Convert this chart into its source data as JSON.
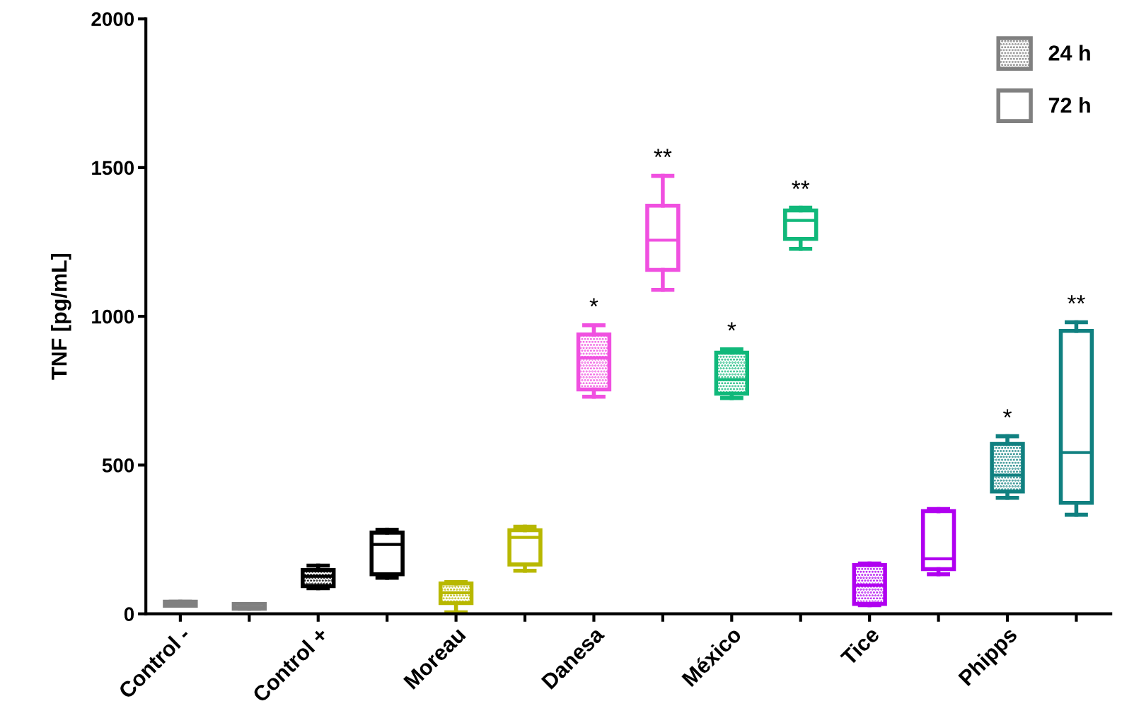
{
  "chart_data": {
    "type": "box",
    "ylabel": "TNF [pg/mL]",
    "categories": [
      "Control -",
      null,
      "Control +",
      null,
      "Moreau",
      null,
      "Danesa",
      null,
      "México",
      null,
      "Tice",
      null,
      "Phipps",
      null
    ],
    "ylim": [
      0,
      2000
    ],
    "yticks": [
      0,
      500,
      1000,
      1500,
      2000
    ],
    "grid": false,
    "legend": "top right",
    "series": [
      {
        "name": "24 h",
        "color": "#808080",
        "colors": [
          "#808080",
          null,
          "#000000",
          null,
          "#b8b800",
          null,
          "#f050e0",
          null,
          "#10b87a",
          null,
          "#b000f0",
          null,
          "#108080",
          null
        ],
        "boxes": [
          {
            "low": 27,
            "q1": 27,
            "median": 33,
            "q3": 41,
            "high": 41
          },
          null,
          {
            "low": 86,
            "q1": 93,
            "median": 126,
            "q3": 147,
            "high": 162
          },
          null,
          {
            "low": 5,
            "q1": 36,
            "median": 71,
            "q3": 102,
            "high": 107
          },
          null,
          {
            "low": 730,
            "q1": 754,
            "median": 861,
            "q3": 939,
            "high": 970
          },
          null,
          {
            "low": 725,
            "q1": 740,
            "median": 787,
            "q3": 878,
            "high": 889
          },
          null,
          {
            "low": 29,
            "q1": 33,
            "median": 96,
            "q3": 164,
            "high": 169
          },
          null,
          {
            "low": 390,
            "q1": 411,
            "median": 466,
            "q3": 571,
            "high": 597
          },
          null
        ],
        "value_labels": [
          null,
          null,
          null,
          null,
          null,
          null,
          "*",
          null,
          "*",
          null,
          null,
          null,
          "*",
          null
        ]
      },
      {
        "name": "72 h",
        "color": "#808080",
        "colors": [
          null,
          "#808080",
          null,
          "#000000",
          null,
          "#b8b800",
          null,
          "#f050e0",
          null,
          "#10b87a",
          null,
          "#b000f0",
          null,
          "#108080"
        ],
        "boxes": [
          null,
          {
            "low": 17,
            "q1": 17,
            "median": 22,
            "q3": 33,
            "high": 33
          },
          null,
          {
            "low": 121,
            "q1": 133,
            "median": 233,
            "q3": 273,
            "high": 283
          },
          null,
          {
            "low": 145,
            "q1": 166,
            "median": 257,
            "q3": 281,
            "high": 293
          },
          null,
          {
            "low": 1089,
            "q1": 1156,
            "median": 1256,
            "q3": 1372,
            "high": 1472
          },
          null,
          {
            "low": 1227,
            "q1": 1260,
            "median": 1322,
            "q3": 1356,
            "high": 1365
          },
          null,
          {
            "low": 133,
            "q1": 150,
            "median": 185,
            "q3": 345,
            "high": 352
          },
          null,
          {
            "low": 333,
            "q1": 373,
            "median": 542,
            "q3": 951,
            "high": 980
          }
        ],
        "value_labels": [
          null,
          null,
          null,
          null,
          null,
          null,
          null,
          "**",
          null,
          "**",
          null,
          null,
          null,
          "**"
        ]
      }
    ]
  }
}
